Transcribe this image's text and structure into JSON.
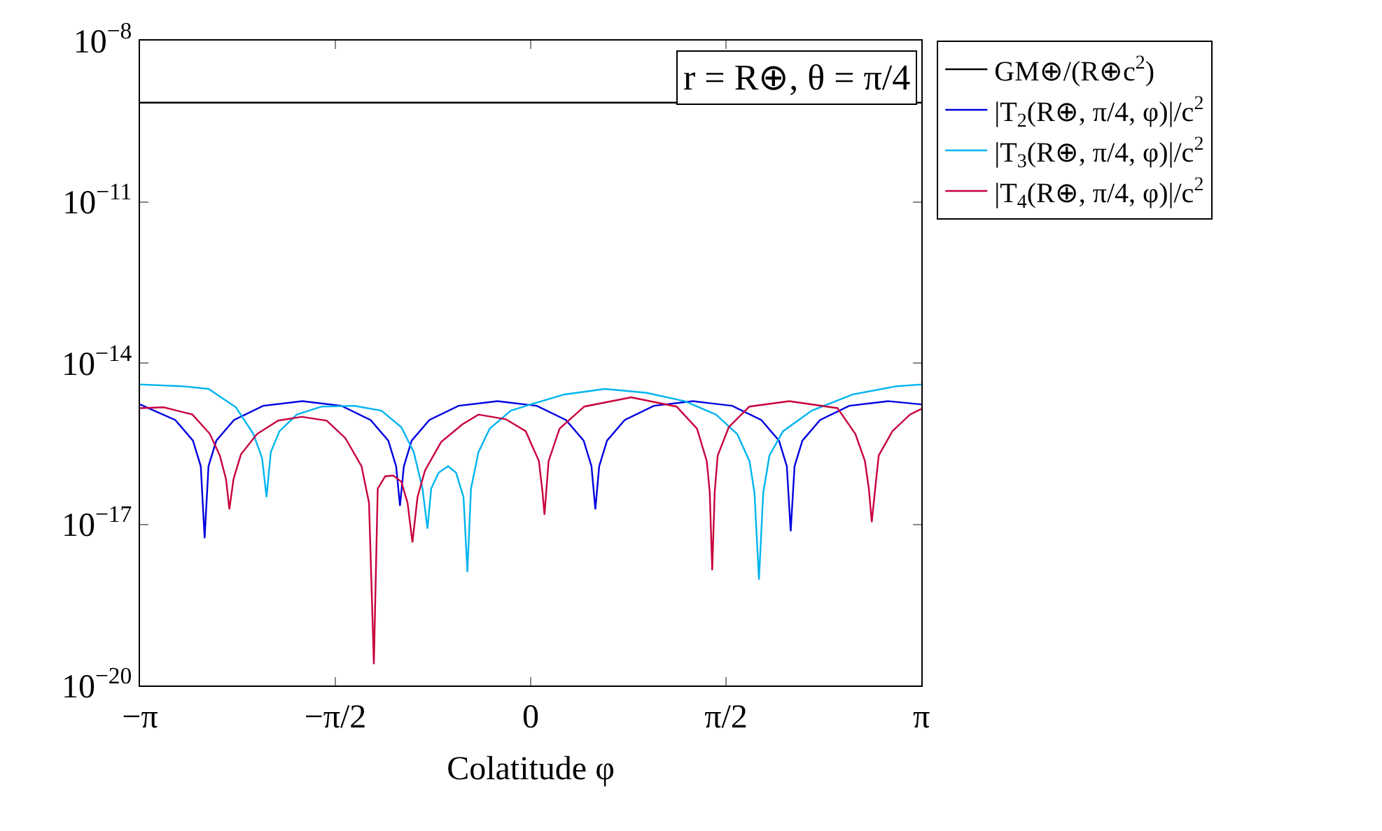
{
  "chart_data": {
    "type": "line",
    "xlabel": "Colatitude φ",
    "annotations": [
      "r = R⊕, θ = π/4"
    ],
    "log": "y",
    "legend": "top right",
    "marker": "none",
    "line_style": "solid",
    "xlim": [
      -3.1416,
      3.1416
    ],
    "xticks": [
      {
        "value": -3.1416,
        "label": "−π"
      },
      {
        "value": -1.5708,
        "label": "−π/2"
      },
      0,
      {
        "value": 1.5708,
        "label": "π/2"
      },
      {
        "value": 3.1416,
        "label": "π"
      }
    ],
    "ylim": [
      1e-20,
      1e-08
    ],
    "yticks": [
      {
        "value": 1e-20,
        "label": "10$^{−20}$"
      },
      {
        "value": 1e-17,
        "label": "10$^{−17}$"
      },
      {
        "value": 1e-14,
        "label": "10$^{−14}$"
      },
      {
        "value": 1e-11,
        "label": "10$^{−11}$"
      },
      {
        "value": 1e-08,
        "label": "10$^{−8}$"
      }
    ],
    "series": [
      {
        "name": "GM⊕/(R⊕c$^{2}$)",
        "color": "#000000",
        "x": [
          -3.1416,
          3.1416
        ],
        "values": [
          7e-10,
          7e-10
        ]
      },
      {
        "name": "|T$_{2}$(R⊕, π/4, φ)|/c$^{2}$",
        "color": "#0000e0",
        "x": [
          -3.1416,
          -2.858,
          -2.716,
          -2.653,
          -2.622,
          -2.591,
          -2.528,
          -2.386,
          -2.151,
          -1.836,
          -1.522,
          -1.287,
          -1.145,
          -1.082,
          -1.051,
          -1.02,
          -0.957,
          -0.815,
          -0.58,
          -0.266,
          0.049,
          0.284,
          0.426,
          0.489,
          0.52,
          0.551,
          0.614,
          0.756,
          0.991,
          1.305,
          1.62,
          1.855,
          1.997,
          2.06,
          2.091,
          2.122,
          2.185,
          2.327,
          2.562,
          2.876,
          3.1416
        ],
        "values": [
          1.7e-15,
          8.7e-16,
          3.6e-16,
          1.2e-16,
          5.5e-18,
          1.2e-16,
          3.6e-16,
          8.7e-16,
          1.6e-15,
          1.95e-15,
          1.6e-15,
          8.7e-16,
          3.6e-16,
          1.2e-16,
          2.2e-17,
          1.2e-16,
          3.6e-16,
          8.7e-16,
          1.6e-15,
          1.95e-15,
          1.6e-15,
          8.7e-16,
          3.6e-16,
          1.2e-16,
          1.9e-17,
          1.2e-16,
          3.6e-16,
          8.7e-16,
          1.6e-15,
          1.95e-15,
          1.6e-15,
          8.7e-16,
          3.6e-16,
          1.2e-16,
          7.4e-18,
          1.2e-16,
          3.6e-16,
          8.7e-16,
          1.6e-15,
          1.95e-15,
          1.7e-15
        ]
      },
      {
        "name": "|T$_{3}$(R⊕, π/4, φ)|/c$^{2}$",
        "color": "#00b4f0",
        "x": [
          -3.1416,
          -2.8,
          -2.59,
          -2.37,
          -2.23,
          -2.16,
          -2.124,
          -2.09,
          -2.02,
          -1.88,
          -1.68,
          -1.42,
          -1.2,
          -1.04,
          -0.94,
          -0.87,
          -0.83,
          -0.8,
          -0.74,
          -0.664,
          -0.6,
          -0.54,
          -0.509,
          -0.48,
          -0.42,
          -0.33,
          -0.16,
          0,
          0.27,
          0.597,
          0.93,
          1.24,
          1.49,
          1.66,
          1.76,
          1.8,
          1.836,
          1.87,
          1.92,
          2.03,
          2.26,
          2.59,
          2.94,
          3.1416
        ],
        "values": [
          4e-15,
          3.7e-15,
          3.3e-15,
          1.5e-15,
          4.8e-16,
          1.7e-16,
          3.2e-17,
          2.2e-16,
          5.4e-16,
          1.1e-15,
          1.55e-15,
          1.6e-15,
          1.3e-15,
          6.4e-16,
          2.2e-16,
          4.6e-17,
          8.3e-18,
          4.6e-17,
          9.1e-17,
          1.2e-16,
          9.1e-17,
          3.2e-17,
          1.3e-18,
          4.6e-17,
          2.2e-16,
          6e-16,
          1.3e-15,
          1.7e-15,
          2.6e-15,
          3.3e-15,
          2.8e-15,
          1.95e-15,
          1.1e-15,
          4.8e-16,
          1.5e-16,
          3.8e-17,
          9.3e-19,
          3.8e-17,
          1.9e-16,
          5.4e-16,
          1.3e-15,
          2.6e-15,
          3.7e-15,
          4e-15
        ]
      },
      {
        "name": "|T$_{4}$(R⊕, π/4, φ)|/c$^{2}$",
        "color": "#c8003c",
        "x": [
          -3.1416,
          -2.95,
          -2.72,
          -2.58,
          -2.5,
          -2.45,
          -2.423,
          -2.39,
          -2.33,
          -2.2,
          -2.03,
          -1.84,
          -1.64,
          -1.49,
          -1.36,
          -1.3,
          -1.261,
          -1.23,
          -1.17,
          -1.106,
          -1.04,
          -0.99,
          -0.951,
          -0.91,
          -0.85,
          -0.72,
          -0.55,
          -0.42,
          -0.2,
          -0.04,
          0.066,
          0.095,
          0.111,
          0.144,
          0.232,
          0.431,
          0.808,
          1.173,
          1.338,
          1.416,
          1.44,
          1.46,
          1.48,
          1.504,
          1.593,
          1.759,
          2.08,
          2.467,
          2.611,
          2.688,
          2.72,
          2.743,
          2.77,
          2.799,
          2.909,
          3.05,
          3.1416
        ],
        "values": [
          1.45e-15,
          1.5e-15,
          1.1e-15,
          4.8e-16,
          1.9e-16,
          6.9e-17,
          1.9e-17,
          6.9e-17,
          2e-16,
          4.8e-16,
          8.5e-16,
          1e-15,
          8.5e-16,
          4e-16,
          1.2e-16,
          2.5e-17,
          2.5e-20,
          4.6e-17,
          7.8e-17,
          8.1e-17,
          6.2e-17,
          2.5e-17,
          4.6e-18,
          3.2e-17,
          1e-16,
          3.4e-16,
          7.2e-16,
          1.1e-15,
          9e-16,
          5.4e-16,
          1.5e-16,
          4e-17,
          1.5e-17,
          1.5e-16,
          6e-16,
          1.55e-15,
          2.3e-15,
          1.55e-15,
          6e-16,
          1.5e-16,
          4e-17,
          1.4e-18,
          4e-17,
          1.9e-16,
          6.4e-16,
          1.55e-15,
          1.95e-15,
          1.45e-15,
          4.8e-16,
          1.5e-16,
          4.5e-17,
          1.1e-17,
          4.5e-17,
          1.9e-16,
          5.4e-16,
          1.1e-15,
          1.4e-15
        ]
      }
    ]
  }
}
